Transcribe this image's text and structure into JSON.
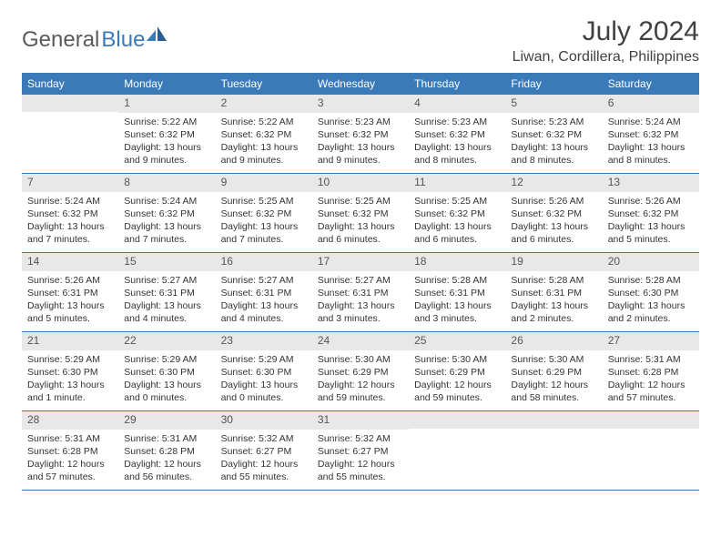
{
  "logo": {
    "text_gray": "General",
    "text_blue": "Blue"
  },
  "colors": {
    "header_bg": "#3a7ab8",
    "daynum_bg": "#e8e8e8",
    "border": "#3a7ab8",
    "text": "#333333",
    "logo_gray": "#5a5a5a",
    "logo_blue": "#3a7ab8"
  },
  "title": "July 2024",
  "location": "Liwan, Cordillera, Philippines",
  "day_headers": [
    "Sunday",
    "Monday",
    "Tuesday",
    "Wednesday",
    "Thursday",
    "Friday",
    "Saturday"
  ],
  "weeks": [
    [
      {
        "num": "",
        "sunrise": "",
        "sunset": "",
        "daylight": ""
      },
      {
        "num": "1",
        "sunrise": "Sunrise: 5:22 AM",
        "sunset": "Sunset: 6:32 PM",
        "daylight": "Daylight: 13 hours and 9 minutes."
      },
      {
        "num": "2",
        "sunrise": "Sunrise: 5:22 AM",
        "sunset": "Sunset: 6:32 PM",
        "daylight": "Daylight: 13 hours and 9 minutes."
      },
      {
        "num": "3",
        "sunrise": "Sunrise: 5:23 AM",
        "sunset": "Sunset: 6:32 PM",
        "daylight": "Daylight: 13 hours and 9 minutes."
      },
      {
        "num": "4",
        "sunrise": "Sunrise: 5:23 AM",
        "sunset": "Sunset: 6:32 PM",
        "daylight": "Daylight: 13 hours and 8 minutes."
      },
      {
        "num": "5",
        "sunrise": "Sunrise: 5:23 AM",
        "sunset": "Sunset: 6:32 PM",
        "daylight": "Daylight: 13 hours and 8 minutes."
      },
      {
        "num": "6",
        "sunrise": "Sunrise: 5:24 AM",
        "sunset": "Sunset: 6:32 PM",
        "daylight": "Daylight: 13 hours and 8 minutes."
      }
    ],
    [
      {
        "num": "7",
        "sunrise": "Sunrise: 5:24 AM",
        "sunset": "Sunset: 6:32 PM",
        "daylight": "Daylight: 13 hours and 7 minutes."
      },
      {
        "num": "8",
        "sunrise": "Sunrise: 5:24 AM",
        "sunset": "Sunset: 6:32 PM",
        "daylight": "Daylight: 13 hours and 7 minutes."
      },
      {
        "num": "9",
        "sunrise": "Sunrise: 5:25 AM",
        "sunset": "Sunset: 6:32 PM",
        "daylight": "Daylight: 13 hours and 7 minutes."
      },
      {
        "num": "10",
        "sunrise": "Sunrise: 5:25 AM",
        "sunset": "Sunset: 6:32 PM",
        "daylight": "Daylight: 13 hours and 6 minutes."
      },
      {
        "num": "11",
        "sunrise": "Sunrise: 5:25 AM",
        "sunset": "Sunset: 6:32 PM",
        "daylight": "Daylight: 13 hours and 6 minutes."
      },
      {
        "num": "12",
        "sunrise": "Sunrise: 5:26 AM",
        "sunset": "Sunset: 6:32 PM",
        "daylight": "Daylight: 13 hours and 6 minutes."
      },
      {
        "num": "13",
        "sunrise": "Sunrise: 5:26 AM",
        "sunset": "Sunset: 6:32 PM",
        "daylight": "Daylight: 13 hours and 5 minutes."
      }
    ],
    [
      {
        "num": "14",
        "sunrise": "Sunrise: 5:26 AM",
        "sunset": "Sunset: 6:31 PM",
        "daylight": "Daylight: 13 hours and 5 minutes."
      },
      {
        "num": "15",
        "sunrise": "Sunrise: 5:27 AM",
        "sunset": "Sunset: 6:31 PM",
        "daylight": "Daylight: 13 hours and 4 minutes."
      },
      {
        "num": "16",
        "sunrise": "Sunrise: 5:27 AM",
        "sunset": "Sunset: 6:31 PM",
        "daylight": "Daylight: 13 hours and 4 minutes."
      },
      {
        "num": "17",
        "sunrise": "Sunrise: 5:27 AM",
        "sunset": "Sunset: 6:31 PM",
        "daylight": "Daylight: 13 hours and 3 minutes."
      },
      {
        "num": "18",
        "sunrise": "Sunrise: 5:28 AM",
        "sunset": "Sunset: 6:31 PM",
        "daylight": "Daylight: 13 hours and 3 minutes."
      },
      {
        "num": "19",
        "sunrise": "Sunrise: 5:28 AM",
        "sunset": "Sunset: 6:31 PM",
        "daylight": "Daylight: 13 hours and 2 minutes."
      },
      {
        "num": "20",
        "sunrise": "Sunrise: 5:28 AM",
        "sunset": "Sunset: 6:30 PM",
        "daylight": "Daylight: 13 hours and 2 minutes."
      }
    ],
    [
      {
        "num": "21",
        "sunrise": "Sunrise: 5:29 AM",
        "sunset": "Sunset: 6:30 PM",
        "daylight": "Daylight: 13 hours and 1 minute."
      },
      {
        "num": "22",
        "sunrise": "Sunrise: 5:29 AM",
        "sunset": "Sunset: 6:30 PM",
        "daylight": "Daylight: 13 hours and 0 minutes."
      },
      {
        "num": "23",
        "sunrise": "Sunrise: 5:29 AM",
        "sunset": "Sunset: 6:30 PM",
        "daylight": "Daylight: 13 hours and 0 minutes."
      },
      {
        "num": "24",
        "sunrise": "Sunrise: 5:30 AM",
        "sunset": "Sunset: 6:29 PM",
        "daylight": "Daylight: 12 hours and 59 minutes."
      },
      {
        "num": "25",
        "sunrise": "Sunrise: 5:30 AM",
        "sunset": "Sunset: 6:29 PM",
        "daylight": "Daylight: 12 hours and 59 minutes."
      },
      {
        "num": "26",
        "sunrise": "Sunrise: 5:30 AM",
        "sunset": "Sunset: 6:29 PM",
        "daylight": "Daylight: 12 hours and 58 minutes."
      },
      {
        "num": "27",
        "sunrise": "Sunrise: 5:31 AM",
        "sunset": "Sunset: 6:28 PM",
        "daylight": "Daylight: 12 hours and 57 minutes."
      }
    ],
    [
      {
        "num": "28",
        "sunrise": "Sunrise: 5:31 AM",
        "sunset": "Sunset: 6:28 PM",
        "daylight": "Daylight: 12 hours and 57 minutes."
      },
      {
        "num": "29",
        "sunrise": "Sunrise: 5:31 AM",
        "sunset": "Sunset: 6:28 PM",
        "daylight": "Daylight: 12 hours and 56 minutes."
      },
      {
        "num": "30",
        "sunrise": "Sunrise: 5:32 AM",
        "sunset": "Sunset: 6:27 PM",
        "daylight": "Daylight: 12 hours and 55 minutes."
      },
      {
        "num": "31",
        "sunrise": "Sunrise: 5:32 AM",
        "sunset": "Sunset: 6:27 PM",
        "daylight": "Daylight: 12 hours and 55 minutes."
      },
      {
        "num": "",
        "sunrise": "",
        "sunset": "",
        "daylight": ""
      },
      {
        "num": "",
        "sunrise": "",
        "sunset": "",
        "daylight": ""
      },
      {
        "num": "",
        "sunrise": "",
        "sunset": "",
        "daylight": ""
      }
    ]
  ]
}
